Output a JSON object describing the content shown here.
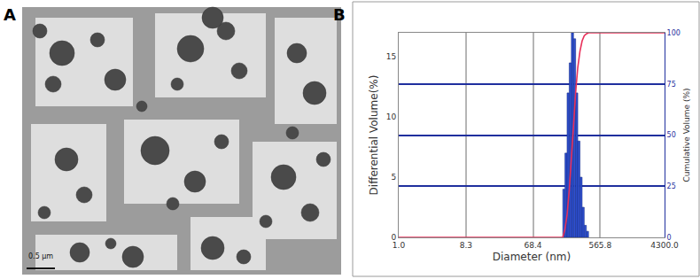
{
  "chart_data": {
    "type": "histogram",
    "x_label": "Diameter (nm)",
    "y_label": "Differential Volume(%)",
    "y2_label": "Cumulative Volume (%)",
    "log": "x",
    "grid": true,
    "xlim": [
      1,
      4300
    ],
    "xticks": [
      {
        "value": 1,
        "label": "1.0"
      },
      8.3,
      68.4,
      565.8,
      {
        "value": 4300,
        "label": "4300.0"
      }
    ],
    "ylim": [
      0,
      17
    ],
    "yticks": [
      0,
      5,
      10,
      15
    ],
    "y2lim": [
      0,
      100
    ],
    "y2ticks": [
      0,
      25,
      50,
      75,
      100
    ],
    "series": [
      {
        "type": "bar",
        "color": "#2e4fd0",
        "bins": [
          175,
          187,
          200,
          214,
          229,
          245,
          262,
          280,
          300,
          321,
          343,
          367,
          393
        ],
        "values": [
          4,
          7,
          12,
          14.5,
          17,
          16.5,
          12,
          8,
          5,
          2.5,
          1,
          0.5
        ]
      },
      {
        "type": "line",
        "color": "#e8305a",
        "axis": "y2",
        "x": [
          1,
          175,
          187,
          200,
          214,
          229,
          245,
          262,
          280,
          300,
          321,
          343,
          367,
          393,
          4300
        ],
        "values": [
          0,
          0,
          4,
          11,
          23,
          37.5,
          54.5,
          71,
          83,
          91,
          96,
          98.5,
          99.5,
          100,
          100
        ]
      }
    ]
  },
  "figure": {
    "panel_labels": [
      "A",
      "B"
    ],
    "image_panel": {
      "scale_bar": "0.5 µm"
    }
  }
}
